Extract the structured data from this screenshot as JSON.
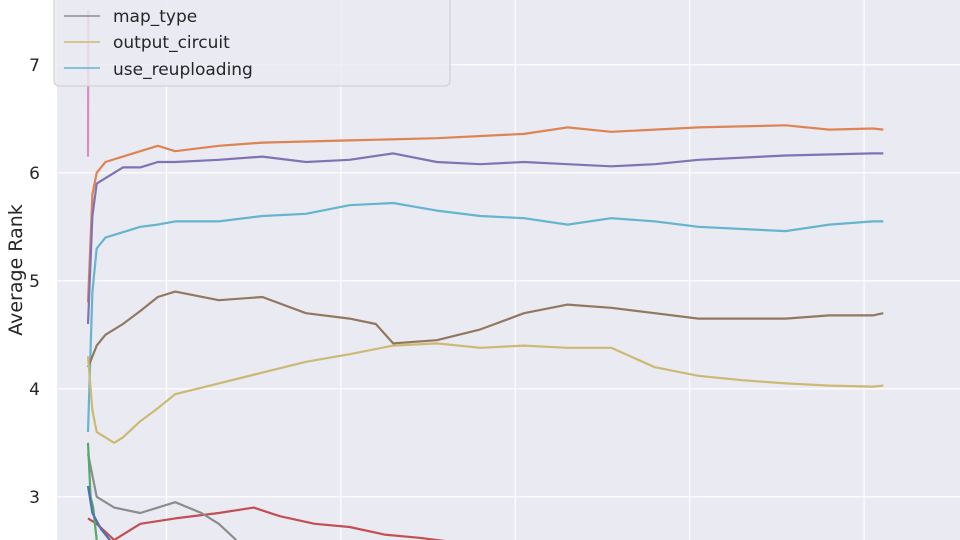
{
  "chart_data": {
    "type": "line",
    "title": "",
    "xlabel": "",
    "ylabel": "Average Rank",
    "ylim": [
      2.6,
      7.6
    ],
    "xlim": [
      0,
      1000
    ],
    "y_ticks": [
      3,
      4,
      5,
      6,
      7
    ],
    "x_gridlines": [
      90,
      290,
      490,
      690,
      890
    ],
    "grid": true,
    "legend": {
      "placement": "top-left",
      "entries": [
        {
          "label": "map_type",
          "color": "#8c8c8c"
        },
        {
          "label": "output_circuit",
          "color": "#ccb974"
        },
        {
          "label": "use_reuploading",
          "color": "#64b5cd"
        }
      ]
    },
    "series": [
      {
        "name": "",
        "color": "#dd8452",
        "x": [
          0,
          5,
          10,
          20,
          40,
          60,
          80,
          100,
          150,
          200,
          300,
          400,
          500,
          550,
          600,
          700,
          800,
          850,
          900,
          912
        ],
        "y": [
          4.8,
          5.8,
          6.0,
          6.1,
          6.15,
          6.2,
          6.25,
          6.2,
          6.25,
          6.28,
          6.3,
          6.32,
          6.36,
          6.42,
          6.38,
          6.42,
          6.44,
          6.4,
          6.41,
          6.4
        ]
      },
      {
        "name": "",
        "color": "#8172b3",
        "x": [
          0,
          5,
          10,
          20,
          40,
          60,
          80,
          100,
          150,
          200,
          250,
          300,
          350,
          400,
          450,
          500,
          550,
          600,
          650,
          700,
          800,
          900,
          912
        ],
        "y": [
          4.6,
          5.6,
          5.9,
          5.95,
          6.05,
          6.05,
          6.1,
          6.1,
          6.12,
          6.15,
          6.1,
          6.12,
          6.18,
          6.1,
          6.08,
          6.1,
          6.08,
          6.06,
          6.08,
          6.12,
          6.16,
          6.18,
          6.18
        ]
      },
      {
        "name": "",
        "color": "#64b5cd",
        "x": [
          0,
          5,
          10,
          20,
          40,
          60,
          80,
          100,
          150,
          200,
          250,
          300,
          350,
          400,
          450,
          500,
          550,
          600,
          650,
          700,
          750,
          800,
          850,
          900,
          912
        ],
        "y": [
          3.6,
          4.9,
          5.3,
          5.4,
          5.45,
          5.5,
          5.52,
          5.55,
          5.55,
          5.6,
          5.62,
          5.7,
          5.72,
          5.65,
          5.6,
          5.58,
          5.52,
          5.58,
          5.55,
          5.5,
          5.48,
          5.46,
          5.52,
          5.55,
          5.55
        ]
      },
      {
        "name": "",
        "color": "#937860",
        "x": [
          0,
          5,
          10,
          20,
          40,
          60,
          80,
          100,
          150,
          200,
          250,
          300,
          330,
          350,
          400,
          450,
          500,
          550,
          600,
          650,
          700,
          800,
          850,
          900,
          912
        ],
        "y": [
          4.2,
          4.3,
          4.4,
          4.5,
          4.6,
          4.72,
          4.85,
          4.9,
          4.82,
          4.85,
          4.7,
          4.65,
          4.6,
          4.42,
          4.45,
          4.55,
          4.7,
          4.78,
          4.75,
          4.7,
          4.65,
          4.65,
          4.68,
          4.68,
          4.7
        ]
      },
      {
        "name": "",
        "color": "#ccb974",
        "x": [
          0,
          5,
          10,
          20,
          30,
          40,
          60,
          80,
          100,
          150,
          200,
          250,
          300,
          350,
          400,
          450,
          500,
          550,
          600,
          650,
          700,
          750,
          800,
          850,
          900,
          912
        ],
        "y": [
          4.3,
          3.8,
          3.6,
          3.55,
          3.5,
          3.55,
          3.7,
          3.82,
          3.95,
          4.05,
          4.15,
          4.25,
          4.32,
          4.4,
          4.42,
          4.38,
          4.4,
          4.38,
          4.38,
          4.2,
          4.12,
          4.08,
          4.05,
          4.03,
          4.02,
          4.03
        ]
      },
      {
        "name": "",
        "color": "#c44e52",
        "x": [
          0,
          10,
          30,
          60,
          100,
          150,
          190,
          220,
          260,
          300,
          340,
          380,
          420,
          460,
          500,
          560,
          620,
          700,
          780,
          860,
          912
        ],
        "y": [
          2.8,
          2.75,
          2.6,
          2.75,
          2.8,
          2.85,
          2.9,
          2.82,
          2.75,
          2.72,
          2.65,
          2.62,
          2.58,
          2.55,
          2.5,
          2.5,
          2.55,
          2.55,
          2.5,
          2.5,
          2.5
        ]
      },
      {
        "name": "",
        "color": "#8c8c8c",
        "x": [
          0,
          10,
          30,
          60,
          100,
          130,
          150,
          170
        ],
        "y": [
          3.4,
          3.0,
          2.9,
          2.85,
          2.95,
          2.85,
          2.75,
          2.6
        ]
      },
      {
        "name": "",
        "color": "#da8bc3",
        "x": [
          0,
          0.5
        ],
        "y": [
          6.15,
          7.5
        ]
      },
      {
        "name": "",
        "color": "#55a868",
        "x": [
          0,
          3,
          6,
          10
        ],
        "y": [
          3.5,
          3.0,
          2.9,
          2.6
        ]
      },
      {
        "name": "",
        "color": "#4c72b0",
        "x": [
          0,
          5,
          15,
          25,
          30
        ],
        "y": [
          3.1,
          2.85,
          2.7,
          2.6,
          2.55
        ]
      }
    ]
  }
}
